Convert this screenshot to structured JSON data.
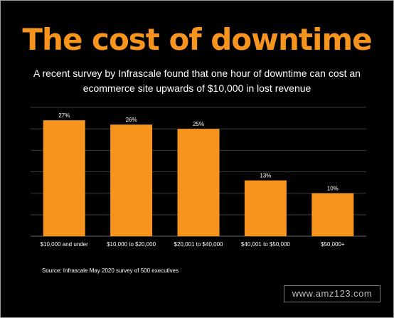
{
  "title": "The cost of downtime",
  "subtitle": "A recent survey by Infrascale found that one hour of downtime can cost an ecommerce site upwards of $10,000 in lost revenue",
  "source": "Source: Infrascale May 2020 survey of 500 executives",
  "watermark": "www.amz123.com",
  "colors": {
    "background": "#000000",
    "bar": "#f7941d",
    "title": "#f7941d",
    "gridline": "#3a3a3a",
    "text": "#ffffff"
  },
  "chart_data": {
    "type": "bar",
    "title": "The cost of downtime",
    "categories": [
      "$10,000 and under",
      "$10,000 to $20,000",
      "$20,001 to $40,000",
      "$40,001 to $50,000",
      "$50,000+"
    ],
    "values": [
      27,
      26,
      25,
      13,
      10
    ],
    "data_labels": [
      "27%",
      "26%",
      "25%",
      "13%",
      "10%"
    ],
    "ylim": [
      0,
      30
    ],
    "grid": true,
    "legend": "none",
    "xlabel": "",
    "ylabel": ""
  }
}
